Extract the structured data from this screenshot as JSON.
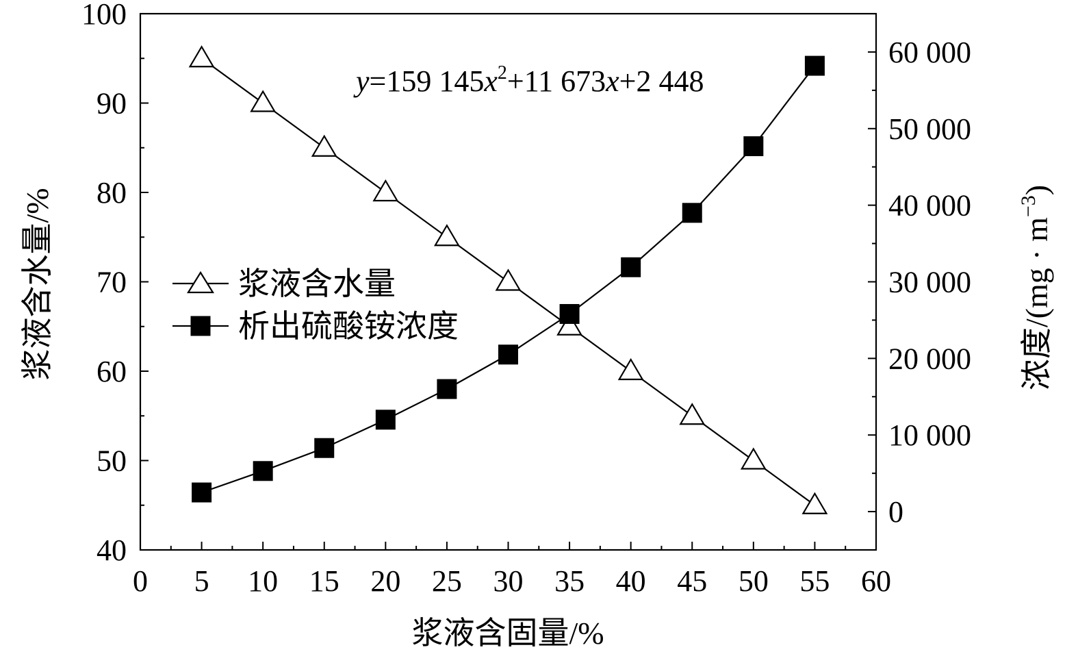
{
  "chart_data": {
    "type": "line",
    "title": "",
    "xlabel": "浆液含固量/%",
    "ylabel_left": "浆液含水量/%",
    "ylabel_right": "浓度/(mg · m",
    "ylabel_right_sup": "−3",
    "ylabel_right_close": ")",
    "x_ticks": [
      "0",
      "5",
      "10",
      "15",
      "20",
      "25",
      "30",
      "35",
      "40",
      "45",
      "50",
      "55",
      "60"
    ],
    "y_left_ticks": [
      "40",
      "50",
      "60",
      "70",
      "80",
      "90",
      "100"
    ],
    "y_right_ticks": [
      "0",
      "10 000",
      "20 000",
      "30 000",
      "40 000",
      "50 000",
      "60 000"
    ],
    "xlim": [
      0,
      60
    ],
    "ylim_left": [
      40,
      100
    ],
    "ylim_right": [
      -5000,
      65000
    ],
    "x": [
      5,
      10,
      15,
      20,
      25,
      30,
      35,
      40,
      45,
      50,
      55
    ],
    "series": [
      {
        "name": "浆液含水量",
        "axis": "left",
        "marker": "open-triangle",
        "values": [
          95,
          90,
          85,
          80,
          75,
          70,
          65,
          60,
          55,
          50,
          45
        ]
      },
      {
        "name": "析出硫酸铵浓度",
        "axis": "right",
        "marker": "filled-square",
        "values": [
          2500,
          5300,
          8300,
          12000,
          16000,
          20500,
          25800,
          31900,
          39000,
          47700,
          58200
        ]
      }
    ],
    "legend_position": "center-left",
    "annotation": {
      "y_var": "y",
      "eq_sign": "=",
      "coef2": "159 145",
      "x_var": "x",
      "exp": "2",
      "plus1": "+",
      "coef1": "11 673",
      "plus2": "+",
      "const": "2 448"
    },
    "grid": false
  }
}
